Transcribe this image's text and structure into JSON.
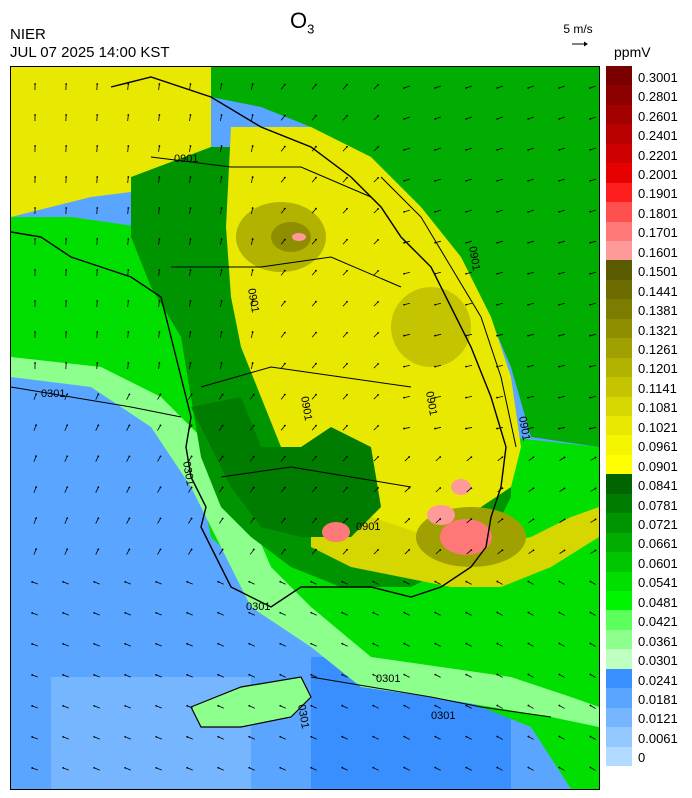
{
  "header": {
    "agency": "NIER",
    "datetime": "JUL 07 2025 14:00 KST",
    "species_main": "O",
    "species_sub": "3",
    "wind_scale_label": "5 m/s",
    "units": "ppmV"
  },
  "legend": {
    "labels": [
      "0.3001",
      "0.2801",
      "0.2601",
      "0.2401",
      "0.2201",
      "0.2001",
      "0.1901",
      "0.1801",
      "0.1701",
      "0.1601",
      "0.1501",
      "0.1441",
      "0.1381",
      "0.1321",
      "0.1261",
      "0.1201",
      "0.1141",
      "0.1081",
      "0.1021",
      "0.0961",
      "0.0901",
      "0.0841",
      "0.0781",
      "0.0721",
      "0.0661",
      "0.0601",
      "0.0541",
      "0.0481",
      "0.0421",
      "0.0361",
      "0.0301",
      "0.0241",
      "0.0181",
      "0.0121",
      "0.0061",
      "0"
    ],
    "colors": [
      "#7a0000",
      "#8c0000",
      "#a30000",
      "#b80000",
      "#cf0000",
      "#e60000",
      "#ff1e1e",
      "#ff5050",
      "#ff7878",
      "#ff9a9a",
      "#5a5a00",
      "#6b6b00",
      "#7c7c00",
      "#8e8e00",
      "#a0a000",
      "#b2b200",
      "#c4c400",
      "#d6d600",
      "#e8e800",
      "#f5f500",
      "#ffff00",
      "#006400",
      "#007c00",
      "#009400",
      "#00ad00",
      "#00c600",
      "#00df00",
      "#00f500",
      "#5cff5c",
      "#8dff8d",
      "#bfffbf",
      "#3a8fff",
      "#5aa5ff",
      "#76b6ff",
      "#93c8ff",
      "#b0daff"
    ]
  },
  "map": {
    "contour_labels": [
      "0301",
      "0301",
      "0301",
      "0301",
      "0901",
      "0901",
      "0901",
      "0901",
      "0901",
      "0901",
      "0901",
      "0301",
      "0301"
    ],
    "colors": {
      "sea": "#5aa5ff",
      "sea_deep": "#3a8fff",
      "coast_band": "#8dff8d",
      "land_low": "#00c600",
      "land_forest": "#009400",
      "land_dark": "#007c00",
      "high_yellow": "#e8e800",
      "high_olive": "#b2b200",
      "high_brown": "#8e8e00",
      "hotspot": "#ff7878",
      "east_sea": "#00ad00"
    }
  }
}
